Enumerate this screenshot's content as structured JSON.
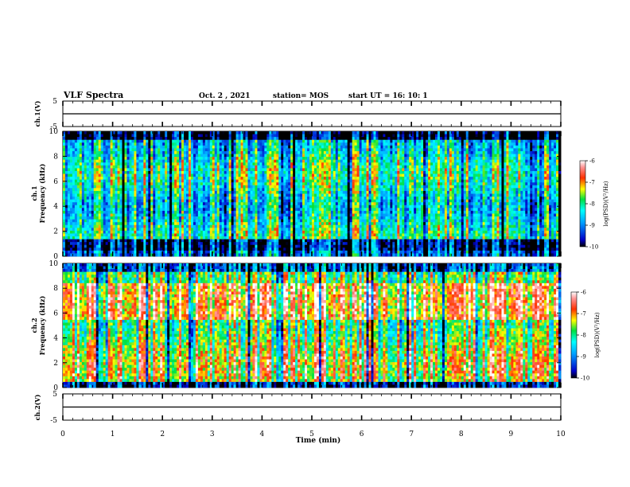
{
  "header": {
    "title": "VLF Spectra",
    "date": "Oct. 2  , 2021",
    "station": "station= MOS",
    "start": "start  UT  =    16: 10: 1"
  },
  "chart_data": [
    {
      "type": "line",
      "ylabel": "ch.1(V)",
      "ylim": [
        -5,
        5
      ],
      "yticks": [
        "5",
        "-5"
      ],
      "x": [
        0,
        10
      ],
      "values": [
        0,
        0
      ]
    },
    {
      "type": "heatmap",
      "ylabel_top": "ch.1",
      "ylabel": "Frequency (kHz)",
      "ylim": [
        0,
        10
      ],
      "yticks": [
        "0",
        "2",
        "4",
        "6",
        "8",
        "10"
      ],
      "colorbar": {
        "label": "log(PSD)(V²/Hz)",
        "ticks": [
          "-6",
          "-7",
          "-8",
          "-9",
          "-10"
        ],
        "range": [
          -10,
          -6
        ]
      }
    },
    {
      "type": "heatmap",
      "ylabel_top": "ch.2",
      "ylabel": "Frequency (kHz)",
      "ylim": [
        0,
        10
      ],
      "yticks": [
        "0",
        "2",
        "4",
        "6",
        "8",
        "10"
      ],
      "colorbar": {
        "label": "log(PSD)(V²/Hz)",
        "ticks": [
          "-6",
          "-7",
          "-8",
          "-9",
          "-10"
        ],
        "range": [
          -10,
          -6
        ]
      }
    },
    {
      "type": "line",
      "ylabel": "ch.2(V)",
      "ylim": [
        -5,
        5
      ],
      "yticks": [
        "5",
        "-5"
      ],
      "x": [
        0,
        10
      ],
      "values": [
        0,
        0
      ]
    }
  ],
  "xaxis": {
    "label": "Time (min)",
    "xlim": [
      0,
      10
    ],
    "ticks": [
      "0",
      "1",
      "2",
      "3",
      "4",
      "5",
      "6",
      "7",
      "8",
      "9",
      "10"
    ]
  }
}
